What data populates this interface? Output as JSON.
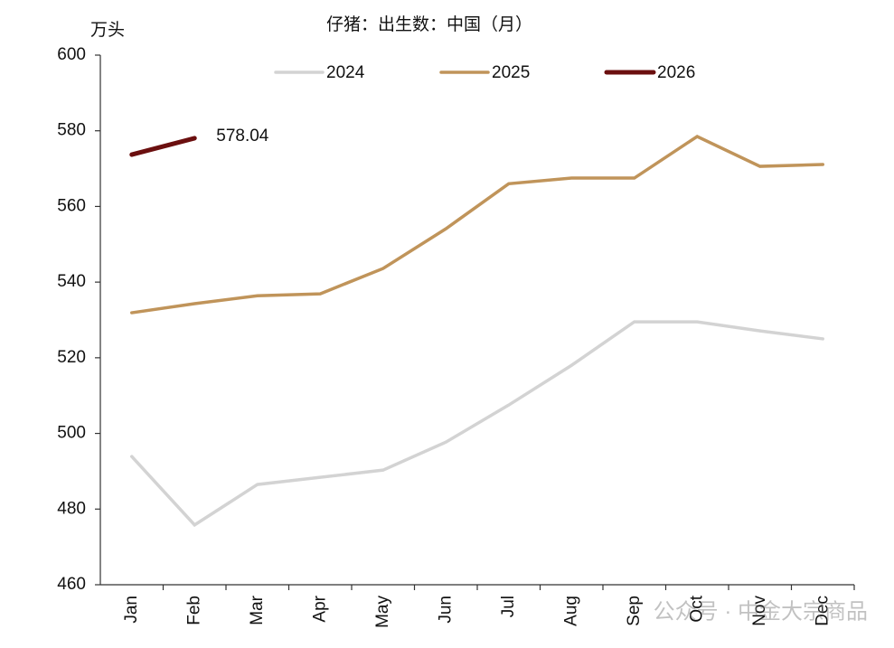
{
  "chart_data": {
    "type": "line",
    "title": "仔猪：出生数：中国（月）",
    "y_label": "万头",
    "categories": [
      "Jan",
      "Feb",
      "Mar",
      "Apr",
      "May",
      "Jun",
      "Jul",
      "Aug",
      "Sep",
      "Oct",
      "Nov",
      "Dec"
    ],
    "series": [
      {
        "name": "2024",
        "color": "#d3d3d3",
        "values": [
          493.9,
          475.8,
          486.5,
          488.4,
          490.3,
          497.7,
          507.5,
          518,
          529.5,
          529.5,
          527.1,
          525
        ]
      },
      {
        "name": "2025",
        "color": "#c0945a",
        "values": [
          531.9,
          534.3,
          536.4,
          536.9,
          543.6,
          554.1,
          566,
          567.5,
          567.5,
          578.5,
          570.6,
          571.1
        ]
      },
      {
        "name": "2026",
        "color": "#6b0f0f",
        "values": [
          573.7,
          578.04,
          null,
          null,
          null,
          null,
          null,
          null,
          null,
          null,
          null,
          null
        ]
      }
    ],
    "data_label": {
      "series": 2,
      "index": 1
    },
    "ylim": [
      460,
      600
    ],
    "yticks": [
      460,
      480,
      500,
      520,
      540,
      560,
      580,
      600
    ],
    "legend": "top",
    "watermark": "公众号 · 中金大宗商品"
  }
}
